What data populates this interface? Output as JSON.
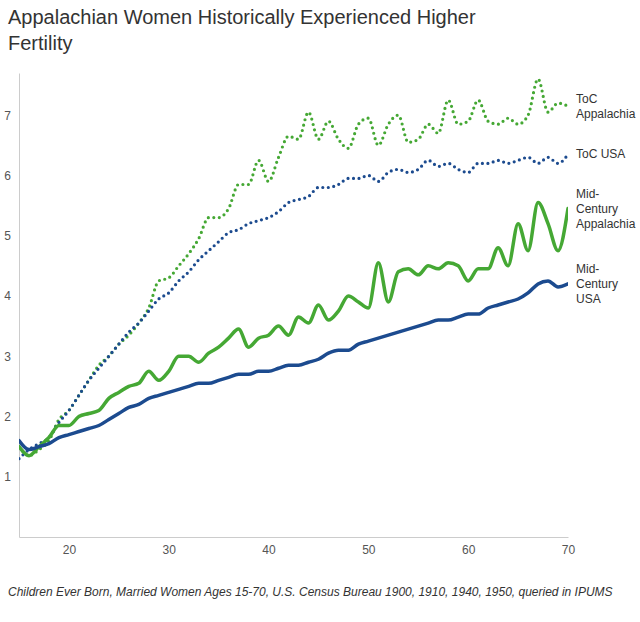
{
  "chart_data": {
    "type": "line",
    "title": "Appalachian Women Historically Experienced Higher Fertility",
    "caption": "Children Ever Born, Married Women Ages 15-70, U.S. Census Bureau 1900, 1910, 1940, 1950, queried in IPUMS",
    "x": [
      15,
      16,
      17,
      18,
      19,
      20,
      21,
      22,
      23,
      24,
      25,
      26,
      27,
      28,
      29,
      30,
      31,
      32,
      33,
      34,
      35,
      36,
      37,
      38,
      39,
      40,
      41,
      42,
      43,
      44,
      45,
      46,
      47,
      48,
      49,
      50,
      51,
      52,
      53,
      54,
      55,
      56,
      57,
      58,
      59,
      60,
      61,
      62,
      63,
      64,
      65,
      66,
      67,
      68,
      69,
      70
    ],
    "series": [
      {
        "name": "ToC Appalachia",
        "color": "#45a834",
        "line_style": "dotted",
        "values": [
          1.5,
          1.35,
          1.45,
          1.6,
          1.95,
          2.1,
          2.35,
          2.6,
          2.85,
          3.0,
          3.2,
          3.35,
          3.55,
          3.8,
          4.25,
          4.3,
          4.5,
          4.7,
          4.95,
          5.3,
          5.3,
          5.45,
          5.85,
          5.85,
          6.25,
          5.9,
          6.3,
          6.65,
          6.6,
          7.05,
          6.6,
          6.9,
          6.6,
          6.45,
          6.85,
          6.95,
          6.5,
          6.85,
          7.0,
          6.55,
          6.6,
          6.85,
          6.7,
          7.25,
          6.85,
          6.9,
          7.25,
          6.9,
          6.85,
          6.95,
          6.85,
          7.0,
          7.6,
          7.05,
          7.2,
          7.15
        ]
      },
      {
        "name": "ToC USA",
        "color": "#1c4b8f",
        "line_style": "dotted",
        "values": [
          1.3,
          1.45,
          1.55,
          1.65,
          1.9,
          2.1,
          2.35,
          2.6,
          2.8,
          3.0,
          3.2,
          3.4,
          3.55,
          3.75,
          3.95,
          4.05,
          4.25,
          4.4,
          4.6,
          4.75,
          4.9,
          5.05,
          5.1,
          5.2,
          5.25,
          5.3,
          5.4,
          5.55,
          5.6,
          5.65,
          5.8,
          5.8,
          5.85,
          5.95,
          5.95,
          6.0,
          5.9,
          6.05,
          6.1,
          6.05,
          6.1,
          6.25,
          6.15,
          6.2,
          6.1,
          6.05,
          6.2,
          6.2,
          6.25,
          6.2,
          6.25,
          6.3,
          6.2,
          6.3,
          6.2,
          6.35
        ]
      },
      {
        "name": "Mid-Century Appalachia",
        "color": "#45a834",
        "line_style": "solid",
        "values": [
          1.5,
          1.35,
          1.5,
          1.65,
          1.85,
          1.85,
          2.0,
          2.05,
          2.1,
          2.3,
          2.4,
          2.5,
          2.55,
          2.75,
          2.6,
          2.75,
          3.0,
          3.0,
          2.9,
          3.05,
          3.15,
          3.3,
          3.45,
          3.15,
          3.3,
          3.35,
          3.5,
          3.35,
          3.65,
          3.55,
          3.85,
          3.6,
          3.75,
          4.0,
          3.9,
          3.8,
          4.55,
          3.9,
          4.4,
          4.45,
          4.35,
          4.5,
          4.45,
          4.55,
          4.5,
          4.25,
          4.45,
          4.45,
          4.8,
          4.5,
          5.2,
          4.75,
          5.55,
          5.2,
          4.75,
          5.45
        ]
      },
      {
        "name": "Mid-Century USA",
        "color": "#1c4b8f",
        "line_style": "solid",
        "values": [
          1.6,
          1.45,
          1.5,
          1.55,
          1.65,
          1.7,
          1.75,
          1.8,
          1.85,
          1.95,
          2.05,
          2.15,
          2.2,
          2.3,
          2.35,
          2.4,
          2.45,
          2.5,
          2.55,
          2.55,
          2.6,
          2.65,
          2.7,
          2.7,
          2.75,
          2.75,
          2.8,
          2.85,
          2.85,
          2.9,
          2.95,
          3.05,
          3.1,
          3.1,
          3.2,
          3.25,
          3.3,
          3.35,
          3.4,
          3.45,
          3.5,
          3.55,
          3.6,
          3.6,
          3.65,
          3.7,
          3.7,
          3.8,
          3.85,
          3.9,
          3.95,
          4.05,
          4.2,
          4.25,
          4.15,
          4.2
        ]
      }
    ],
    "xlim": [
      15,
      70
    ],
    "xticks": [
      20,
      30,
      40,
      50,
      60,
      70
    ],
    "ylim": [
      0,
      7.7
    ],
    "yticks": [
      1,
      2,
      3,
      4,
      5,
      6,
      7
    ],
    "grid": false
  }
}
